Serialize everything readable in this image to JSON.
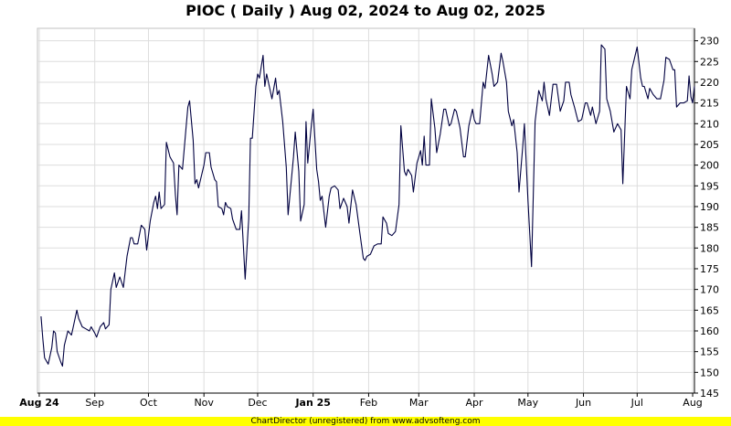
{
  "chart_data": {
    "type": "line",
    "title": "PIOC ( Daily ) Aug 02, 2024 to Aug 02, 2025",
    "xlabel": "",
    "ylabel": "",
    "ylim": [
      145,
      233
    ],
    "xlim": [
      "2024-08-02",
      "2025-08-02"
    ],
    "y_ticks": [
      145,
      150,
      155,
      160,
      165,
      170,
      175,
      180,
      185,
      190,
      195,
      200,
      205,
      210,
      215,
      220,
      225,
      230
    ],
    "x_ticks": [
      {
        "label": "Aug 24",
        "date": "2024-08-01",
        "bold": true
      },
      {
        "label": "Sep",
        "date": "2024-09-01",
        "bold": false
      },
      {
        "label": "Oct",
        "date": "2024-10-01",
        "bold": false
      },
      {
        "label": "Nov",
        "date": "2024-11-01",
        "bold": false
      },
      {
        "label": "Dec",
        "date": "2024-12-01",
        "bold": false
      },
      {
        "label": "Jan 25",
        "date": "2025-01-01",
        "bold": true
      },
      {
        "label": "Feb",
        "date": "2025-02-01",
        "bold": false
      },
      {
        "label": "Mar",
        "date": "2025-03-01",
        "bold": false
      },
      {
        "label": "Apr",
        "date": "2025-04-01",
        "bold": false
      },
      {
        "label": "May",
        "date": "2025-05-01",
        "bold": false
      },
      {
        "label": "Jun",
        "date": "2025-06-01",
        "bold": false
      },
      {
        "label": "Jul",
        "date": "2025-07-01",
        "bold": false
      },
      {
        "label": "Aug",
        "date": "2025-08-01",
        "bold": false
      }
    ],
    "grid": true,
    "series": [
      {
        "color": "#000040",
        "points": [
          [
            "2024-08-02",
            163.5
          ],
          [
            "2024-08-03",
            158
          ],
          [
            "2024-08-04",
            153.5
          ],
          [
            "2024-08-06",
            152
          ],
          [
            "2024-08-08",
            156
          ],
          [
            "2024-08-09",
            160
          ],
          [
            "2024-08-10",
            159.5
          ],
          [
            "2024-08-11",
            155
          ],
          [
            "2024-08-13",
            152.5
          ],
          [
            "2024-08-14",
            151.5
          ],
          [
            "2024-08-15",
            156.5
          ],
          [
            "2024-08-17",
            160
          ],
          [
            "2024-08-19",
            159
          ],
          [
            "2024-08-20",
            161
          ],
          [
            "2024-08-22",
            165
          ],
          [
            "2024-08-23",
            163
          ],
          [
            "2024-08-25",
            161
          ],
          [
            "2024-08-27",
            160.5
          ],
          [
            "2024-08-29",
            160
          ],
          [
            "2024-08-30",
            161
          ],
          [
            "2024-09-01",
            159.5
          ],
          [
            "2024-09-02",
            158.5
          ],
          [
            "2024-09-04",
            161
          ],
          [
            "2024-09-06",
            162
          ],
          [
            "2024-09-07",
            160.5
          ],
          [
            "2024-09-09",
            161.5
          ],
          [
            "2024-09-10",
            170
          ],
          [
            "2024-09-12",
            174
          ],
          [
            "2024-09-13",
            170.5
          ],
          [
            "2024-09-15",
            173
          ],
          [
            "2024-09-17",
            170.5
          ],
          [
            "2024-09-19",
            178
          ],
          [
            "2024-09-21",
            182.5
          ],
          [
            "2024-09-22",
            182.5
          ],
          [
            "2024-09-23",
            181
          ],
          [
            "2024-09-25",
            181
          ],
          [
            "2024-09-27",
            185.5
          ],
          [
            "2024-09-29",
            184.5
          ],
          [
            "2024-09-30",
            179.5
          ],
          [
            "2024-10-02",
            186.5
          ],
          [
            "2024-10-04",
            191
          ],
          [
            "2024-10-05",
            192.5
          ],
          [
            "2024-10-06",
            189.5
          ],
          [
            "2024-10-07",
            193.5
          ],
          [
            "2024-10-08",
            189.5
          ],
          [
            "2024-10-10",
            190.5
          ],
          [
            "2024-10-11",
            205.5
          ],
          [
            "2024-10-13",
            202
          ],
          [
            "2024-10-15",
            200.5
          ],
          [
            "2024-10-16",
            193
          ],
          [
            "2024-10-17",
            188
          ],
          [
            "2024-10-18",
            200
          ],
          [
            "2024-10-20",
            199
          ],
          [
            "2024-10-22",
            209
          ],
          [
            "2024-10-23",
            214
          ],
          [
            "2024-10-24",
            215.5
          ],
          [
            "2024-10-26",
            206
          ],
          [
            "2024-10-27",
            195.5
          ],
          [
            "2024-10-28",
            196.5
          ],
          [
            "2024-10-29",
            194.5
          ],
          [
            "2024-11-01",
            200
          ],
          [
            "2024-11-02",
            203
          ],
          [
            "2024-11-04",
            203
          ],
          [
            "2024-11-05",
            199.5
          ],
          [
            "2024-11-07",
            196.5
          ],
          [
            "2024-11-08",
            196
          ],
          [
            "2024-11-09",
            190
          ],
          [
            "2024-11-11",
            189.5
          ],
          [
            "2024-11-12",
            188
          ],
          [
            "2024-11-13",
            191
          ],
          [
            "2024-11-14",
            190
          ],
          [
            "2024-11-16",
            189.5
          ],
          [
            "2024-11-17",
            187
          ],
          [
            "2024-11-19",
            184.5
          ],
          [
            "2024-11-21",
            184.5
          ],
          [
            "2024-11-22",
            189
          ],
          [
            "2024-11-24",
            172.5
          ],
          [
            "2024-11-26",
            187
          ],
          [
            "2024-11-27",
            206.5
          ],
          [
            "2024-11-28",
            206.5
          ],
          [
            "2024-11-30",
            219
          ],
          [
            "2024-12-01",
            222
          ],
          [
            "2024-12-02",
            221
          ],
          [
            "2024-12-04",
            226.5
          ],
          [
            "2024-12-05",
            219
          ],
          [
            "2024-12-06",
            222
          ],
          [
            "2024-12-08",
            218
          ],
          [
            "2024-12-09",
            216
          ],
          [
            "2024-12-11",
            221
          ],
          [
            "2024-12-12",
            217
          ],
          [
            "2024-12-13",
            218
          ],
          [
            "2024-12-15",
            210.5
          ],
          [
            "2024-12-17",
            199.5
          ],
          [
            "2024-12-18",
            188
          ],
          [
            "2024-12-21",
            202
          ],
          [
            "2024-12-22",
            208
          ],
          [
            "2024-12-24",
            198.5
          ],
          [
            "2024-12-25",
            186.5
          ],
          [
            "2024-12-27",
            190.5
          ],
          [
            "2024-12-28",
            210.5
          ],
          [
            "2024-12-29",
            200.5
          ],
          [
            "2024-12-31",
            209.5
          ],
          [
            "2025-01-01",
            213.5
          ],
          [
            "2025-01-03",
            199
          ],
          [
            "2025-01-04",
            196
          ],
          [
            "2025-01-05",
            191.5
          ],
          [
            "2025-01-06",
            192.5
          ],
          [
            "2025-01-08",
            185
          ],
          [
            "2025-01-10",
            192.5
          ],
          [
            "2025-01-11",
            194.5
          ],
          [
            "2025-01-13",
            195
          ],
          [
            "2025-01-15",
            194
          ],
          [
            "2025-01-16",
            189.5
          ],
          [
            "2025-01-18",
            192
          ],
          [
            "2025-01-20",
            190
          ],
          [
            "2025-01-21",
            186
          ],
          [
            "2025-01-23",
            194
          ],
          [
            "2025-01-25",
            190.5
          ],
          [
            "2025-01-27",
            184
          ],
          [
            "2025-01-29",
            177.5
          ],
          [
            "2025-01-30",
            177
          ],
          [
            "2025-01-31",
            178
          ],
          [
            "2025-02-02",
            178.5
          ],
          [
            "2025-02-04",
            180.5
          ],
          [
            "2025-02-06",
            181
          ],
          [
            "2025-02-08",
            181
          ],
          [
            "2025-02-09",
            187.5
          ],
          [
            "2025-02-11",
            186
          ],
          [
            "2025-02-12",
            183.5
          ],
          [
            "2025-02-14",
            183
          ],
          [
            "2025-02-16",
            184
          ],
          [
            "2025-02-18",
            190.5
          ],
          [
            "2025-02-19",
            209.5
          ],
          [
            "2025-02-21",
            198.5
          ],
          [
            "2025-02-22",
            197.5
          ],
          [
            "2025-02-23",
            199
          ],
          [
            "2025-02-25",
            197.5
          ],
          [
            "2025-02-26",
            193.5
          ],
          [
            "2025-02-28",
            200.5
          ],
          [
            "2025-03-02",
            203.5
          ],
          [
            "2025-03-03",
            200
          ],
          [
            "2025-03-04",
            207
          ],
          [
            "2025-03-05",
            200
          ],
          [
            "2025-03-07",
            200
          ],
          [
            "2025-03-08",
            216
          ],
          [
            "2025-03-10",
            209
          ],
          [
            "2025-03-11",
            203
          ],
          [
            "2025-03-13",
            207.5
          ],
          [
            "2025-03-15",
            213.5
          ],
          [
            "2025-03-16",
            213.5
          ],
          [
            "2025-03-18",
            209.5
          ],
          [
            "2025-03-19",
            210
          ],
          [
            "2025-03-21",
            213.5
          ],
          [
            "2025-03-22",
            213
          ],
          [
            "2025-03-24",
            209
          ],
          [
            "2025-03-26",
            202
          ],
          [
            "2025-03-27",
            202
          ],
          [
            "2025-03-29",
            209.5
          ],
          [
            "2025-03-31",
            213.5
          ],
          [
            "2025-04-01",
            211
          ],
          [
            "2025-04-02",
            210
          ],
          [
            "2025-04-04",
            210
          ],
          [
            "2025-04-06",
            220
          ],
          [
            "2025-04-07",
            218.5
          ],
          [
            "2025-04-09",
            226.5
          ],
          [
            "2025-04-11",
            222
          ],
          [
            "2025-04-12",
            219
          ],
          [
            "2025-04-14",
            220
          ],
          [
            "2025-04-16",
            227
          ],
          [
            "2025-04-17",
            225
          ],
          [
            "2025-04-19",
            220
          ],
          [
            "2025-04-20",
            213
          ],
          [
            "2025-04-22",
            209.5
          ],
          [
            "2025-04-23",
            211
          ],
          [
            "2025-04-25",
            203
          ],
          [
            "2025-04-26",
            193.5
          ],
          [
            "2025-04-28",
            204
          ],
          [
            "2025-04-29",
            210
          ],
          [
            "2025-05-01",
            191.5
          ],
          [
            "2025-05-03",
            175.5
          ],
          [
            "2025-05-05",
            210.5
          ],
          [
            "2025-05-07",
            218
          ],
          [
            "2025-05-09",
            215.5
          ],
          [
            "2025-05-10",
            220
          ],
          [
            "2025-05-11",
            216
          ],
          [
            "2025-05-13",
            212
          ],
          [
            "2025-05-15",
            219.5
          ],
          [
            "2025-05-17",
            219.5
          ],
          [
            "2025-05-19",
            213
          ],
          [
            "2025-05-21",
            215.5
          ],
          [
            "2025-05-22",
            220
          ],
          [
            "2025-05-24",
            220
          ],
          [
            "2025-05-25",
            217
          ],
          [
            "2025-05-27",
            214
          ],
          [
            "2025-05-29",
            210.5
          ],
          [
            "2025-05-31",
            211
          ],
          [
            "2025-06-02",
            215
          ],
          [
            "2025-06-03",
            215
          ],
          [
            "2025-06-05",
            212
          ],
          [
            "2025-06-06",
            214
          ],
          [
            "2025-06-08",
            210
          ],
          [
            "2025-06-10",
            213
          ],
          [
            "2025-06-11",
            229
          ],
          [
            "2025-06-13",
            228
          ],
          [
            "2025-06-14",
            216
          ],
          [
            "2025-06-16",
            213
          ],
          [
            "2025-06-18",
            208
          ],
          [
            "2025-06-20",
            210
          ],
          [
            "2025-06-22",
            208.5
          ],
          [
            "2025-06-23",
            195.5
          ],
          [
            "2025-06-25",
            219
          ],
          [
            "2025-06-27",
            216
          ],
          [
            "2025-06-28",
            223
          ],
          [
            "2025-07-01",
            228.5
          ],
          [
            "2025-07-03",
            221
          ],
          [
            "2025-07-04",
            219
          ],
          [
            "2025-07-05",
            219
          ],
          [
            "2025-07-07",
            216
          ],
          [
            "2025-07-08",
            218.5
          ],
          [
            "2025-07-10",
            217
          ],
          [
            "2025-07-12",
            216
          ],
          [
            "2025-07-14",
            216
          ],
          [
            "2025-07-16",
            220.5
          ],
          [
            "2025-07-17",
            226
          ],
          [
            "2025-07-19",
            225.5
          ],
          [
            "2025-07-21",
            223
          ],
          [
            "2025-07-22",
            223
          ],
          [
            "2025-07-23",
            214
          ],
          [
            "2025-07-25",
            215
          ],
          [
            "2025-07-27",
            215
          ],
          [
            "2025-07-29",
            215.5
          ],
          [
            "2025-07-30",
            221.5
          ],
          [
            "2025-07-31",
            216.5
          ],
          [
            "2025-08-01",
            215
          ],
          [
            "2025-08-02",
            219
          ]
        ]
      }
    ]
  },
  "footer": "ChartDirector (unregistered) from www.advsofteng.com",
  "colors": {
    "line": "#000040",
    "grid": "#dddddd",
    "frame": "#c0c0c0",
    "footer_bg": "#ffff00"
  }
}
